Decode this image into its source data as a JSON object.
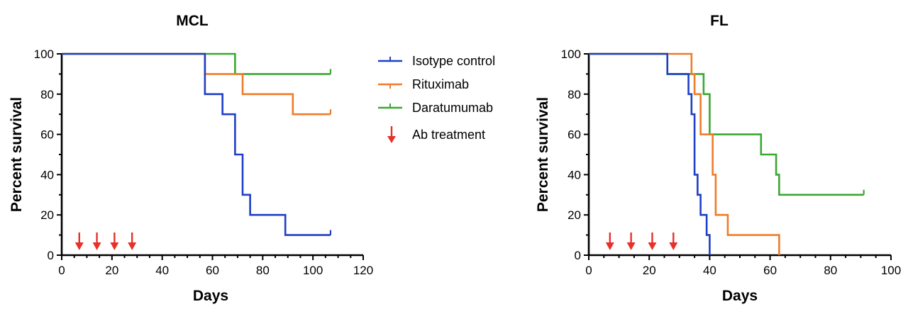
{
  "chart_data": [
    {
      "type": "line",
      "step": true,
      "title": "MCL",
      "xlabel": "Days",
      "ylabel": "Percent survival",
      "xlim": [
        0,
        120
      ],
      "ylim": [
        0,
        100
      ],
      "xticks": [
        0,
        20,
        40,
        60,
        80,
        100,
        120
      ],
      "yticks": [
        0,
        20,
        40,
        60,
        80,
        100
      ],
      "x_minor_step": 5,
      "y_minor_step": 10,
      "treatment_days": [
        7,
        14,
        21,
        28
      ],
      "series": [
        {
          "name": "Isotype control",
          "color": "#1f3fc6",
          "points": [
            [
              0,
              100
            ],
            [
              57,
              80
            ],
            [
              64,
              70
            ],
            [
              69,
              50
            ],
            [
              72,
              30
            ],
            [
              75,
              20
            ],
            [
              89,
              10
            ],
            [
              107,
              10
            ]
          ],
          "censor": [
            107
          ]
        },
        {
          "name": "Rituximab",
          "color": "#f07b29",
          "points": [
            [
              0,
              100
            ],
            [
              57,
              90
            ],
            [
              72,
              80
            ],
            [
              92,
              70
            ],
            [
              107,
              70
            ]
          ],
          "censor": [
            107
          ]
        },
        {
          "name": "Daratumumab",
          "color": "#3aa832",
          "points": [
            [
              0,
              100
            ],
            [
              69,
              90
            ],
            [
              107,
              90
            ]
          ],
          "censor": [
            107
          ]
        }
      ]
    },
    {
      "type": "line",
      "step": true,
      "title": "FL",
      "xlabel": "Days",
      "ylabel": "Percent survival",
      "xlim": [
        0,
        100
      ],
      "ylim": [
        0,
        100
      ],
      "xticks": [
        0,
        20,
        40,
        60,
        80,
        100
      ],
      "yticks": [
        0,
        20,
        40,
        60,
        80,
        100
      ],
      "x_minor_step": 5,
      "y_minor_step": 10,
      "treatment_days": [
        7,
        14,
        21,
        28
      ],
      "series": [
        {
          "name": "Isotype control",
          "color": "#1f3fc6",
          "points": [
            [
              0,
              100
            ],
            [
              26,
              90
            ],
            [
              33,
              80
            ],
            [
              34,
              70
            ],
            [
              35,
              40
            ],
            [
              36,
              30
            ],
            [
              37,
              20
            ],
            [
              39,
              10
            ],
            [
              40,
              0
            ]
          ],
          "censor": []
        },
        {
          "name": "Rituximab",
          "color": "#f07b29",
          "points": [
            [
              0,
              100
            ],
            [
              34,
              90
            ],
            [
              35,
              80
            ],
            [
              37,
              60
            ],
            [
              41,
              40
            ],
            [
              42,
              20
            ],
            [
              46,
              10
            ],
            [
              63,
              0
            ]
          ],
          "censor": []
        },
        {
          "name": "Daratumumab",
          "color": "#3aa832",
          "points": [
            [
              0,
              100
            ],
            [
              26,
              90
            ],
            [
              36,
              90
            ],
            [
              38,
              80
            ],
            [
              40,
              60
            ],
            [
              57,
              50
            ],
            [
              62,
              40
            ],
            [
              63,
              30
            ],
            [
              91,
              30
            ]
          ],
          "censor": [
            91
          ]
        }
      ]
    }
  ],
  "legend": {
    "items": [
      {
        "label": "Isotype control",
        "color": "#1f3fc6",
        "kind": "line"
      },
      {
        "label": "Rituximab",
        "color": "#f07b29",
        "kind": "line"
      },
      {
        "label": "Daratumumab",
        "color": "#3aa832",
        "kind": "line"
      },
      {
        "label": "Ab treatment",
        "color": "#e8302a",
        "kind": "arrow"
      }
    ]
  },
  "arrow_color": "#e8302a"
}
